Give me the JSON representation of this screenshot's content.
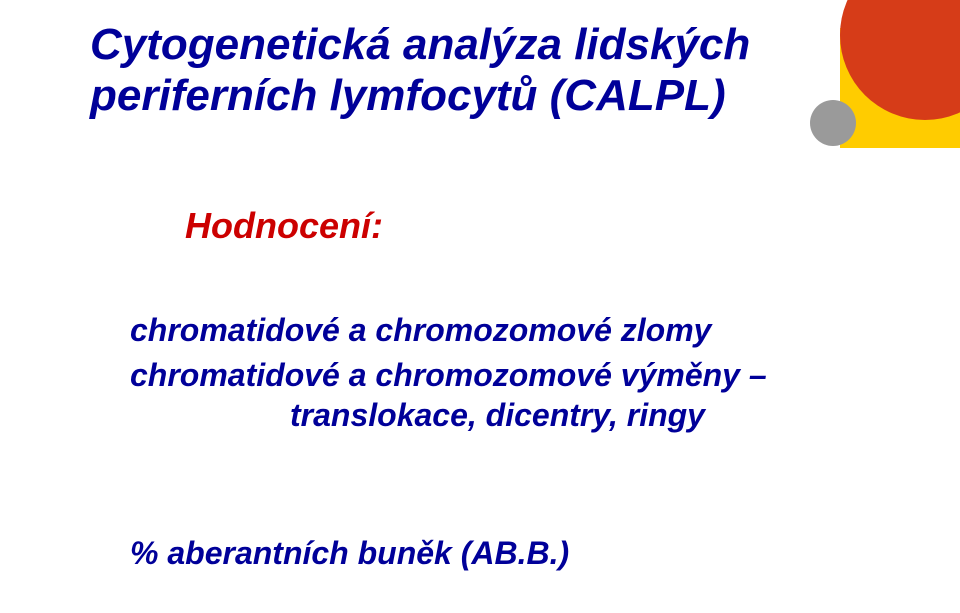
{
  "decor": {
    "yellow": "#ffcc00",
    "red": "#d63c18",
    "grey": "#9a9a9a"
  },
  "title": "Cytogenetická analýza lidských periferních lymfocytů (CALPL)",
  "subtitle": "Hodnocení:",
  "body1": "chromatidové a chromozomové zlomy",
  "body2_line1": "chromatidové a chromozomové výměny –",
  "body2_line2": "translokace, dicentry, ringy",
  "footer": "% aberantních buněk (AB.B.)",
  "colors": {
    "title_blue": "#000099",
    "subtitle_red": "#cc0000",
    "background": "#ffffff"
  },
  "typography": {
    "title_fontsize": 44,
    "subtitle_fontsize": 36,
    "body_fontsize": 32,
    "font_family": "Verdana",
    "font_weight": "bold",
    "font_style": "italic"
  }
}
